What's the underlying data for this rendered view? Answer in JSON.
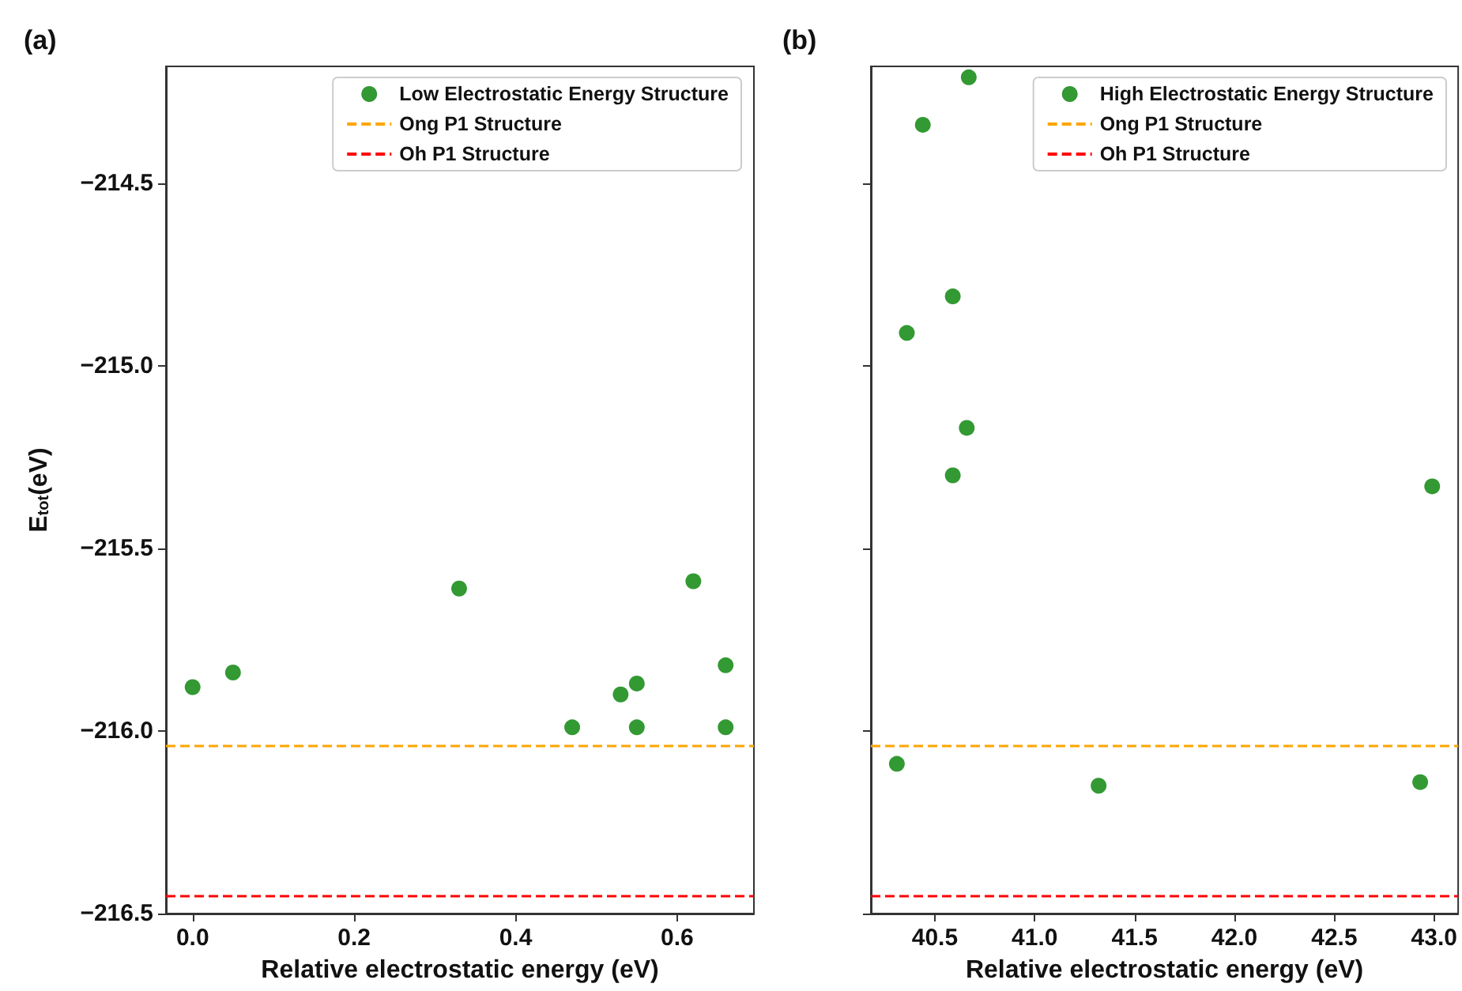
{
  "chart_data": [
    {
      "type": "scatter",
      "title": "(a)",
      "xlabel": "Relative electrostatic energy (eV)",
      "ylabel": "E$_{tot}$(eV)",
      "series": [
        {
          "name": "Low Electrostatic Energy Structure",
          "color": "#008000",
          "x": [
            0,
            0.05,
            0.33,
            0.47,
            0.53,
            0.55,
            0.55,
            0.62,
            0.66,
            0.66
          ],
          "values": [
            -215.88,
            -215.84,
            -215.61,
            -215.99,
            -215.9,
            -215.87,
            -215.99,
            -215.59,
            -215.82,
            -215.99
          ]
        }
      ],
      "ref_lines": [
        {
          "axis": "y",
          "value": -216.04,
          "label": "Ong P1 Structure",
          "color": "#ffa500",
          "line_style": "dashed"
        },
        {
          "axis": "y",
          "value": -216.45,
          "label": "Oh P1 Structure",
          "color": "#ff0000",
          "line_style": "dashed"
        }
      ],
      "xlim": [
        -0.033,
        0.695
      ],
      "xticks": [
        {
          "value": 0,
          "label": "0.0"
        },
        0.2,
        0.4,
        0.6
      ],
      "ylim": [
        -216.5,
        -214.18
      ],
      "yticks": [
        {
          "value": -216.5,
          "label": "−216.5"
        },
        {
          "value": -216,
          "label": "−216.0"
        },
        {
          "value": -215.5,
          "label": "−215.5"
        },
        {
          "value": -215,
          "label": "−215.0"
        },
        {
          "value": -214.5,
          "label": "−214.5"
        }
      ],
      "marker": "circle",
      "legend": "top right"
    },
    {
      "type": "scatter",
      "title": "(b)",
      "xlabel": "Relative electrostatic energy (eV)",
      "series": [
        {
          "name": "High Electrostatic Energy Structure",
          "color": "#008000",
          "x": [
            40.67,
            40.44,
            40.59,
            40.36,
            40.66,
            40.59,
            42.99,
            40.31,
            41.32,
            42.93
          ],
          "values": [
            -214.21,
            -214.34,
            -214.81,
            -214.91,
            -215.17,
            -215.3,
            -215.33,
            -216.09,
            -216.15,
            -216.14
          ]
        }
      ],
      "ref_lines": [
        {
          "axis": "y",
          "value": -216.04,
          "label": "Ong P1 Structure",
          "color": "#ffa500",
          "line_style": "dashed"
        },
        {
          "axis": "y",
          "value": -216.45,
          "label": "Oh P1 Structure",
          "color": "#ff0000",
          "line_style": "dashed"
        }
      ],
      "xlim": [
        40.18,
        43.12
      ],
      "xticks": [
        40.5,
        {
          "value": 41,
          "label": "41.0"
        },
        41.5,
        {
          "value": 42,
          "label": "42.0"
        },
        42.5,
        {
          "value": 43,
          "label": "43.0"
        }
      ],
      "ylim": [
        -216.5,
        -214.18
      ],
      "yticks": [
        {
          "value": -216.5,
          "label": null
        },
        {
          "value": -216,
          "label": null
        },
        {
          "value": -215.5,
          "label": null
        },
        {
          "value": -215,
          "label": null
        },
        {
          "value": -214.5,
          "label": null
        }
      ],
      "tick_labels": "x",
      "marker": "circle",
      "legend": "top right"
    }
  ]
}
